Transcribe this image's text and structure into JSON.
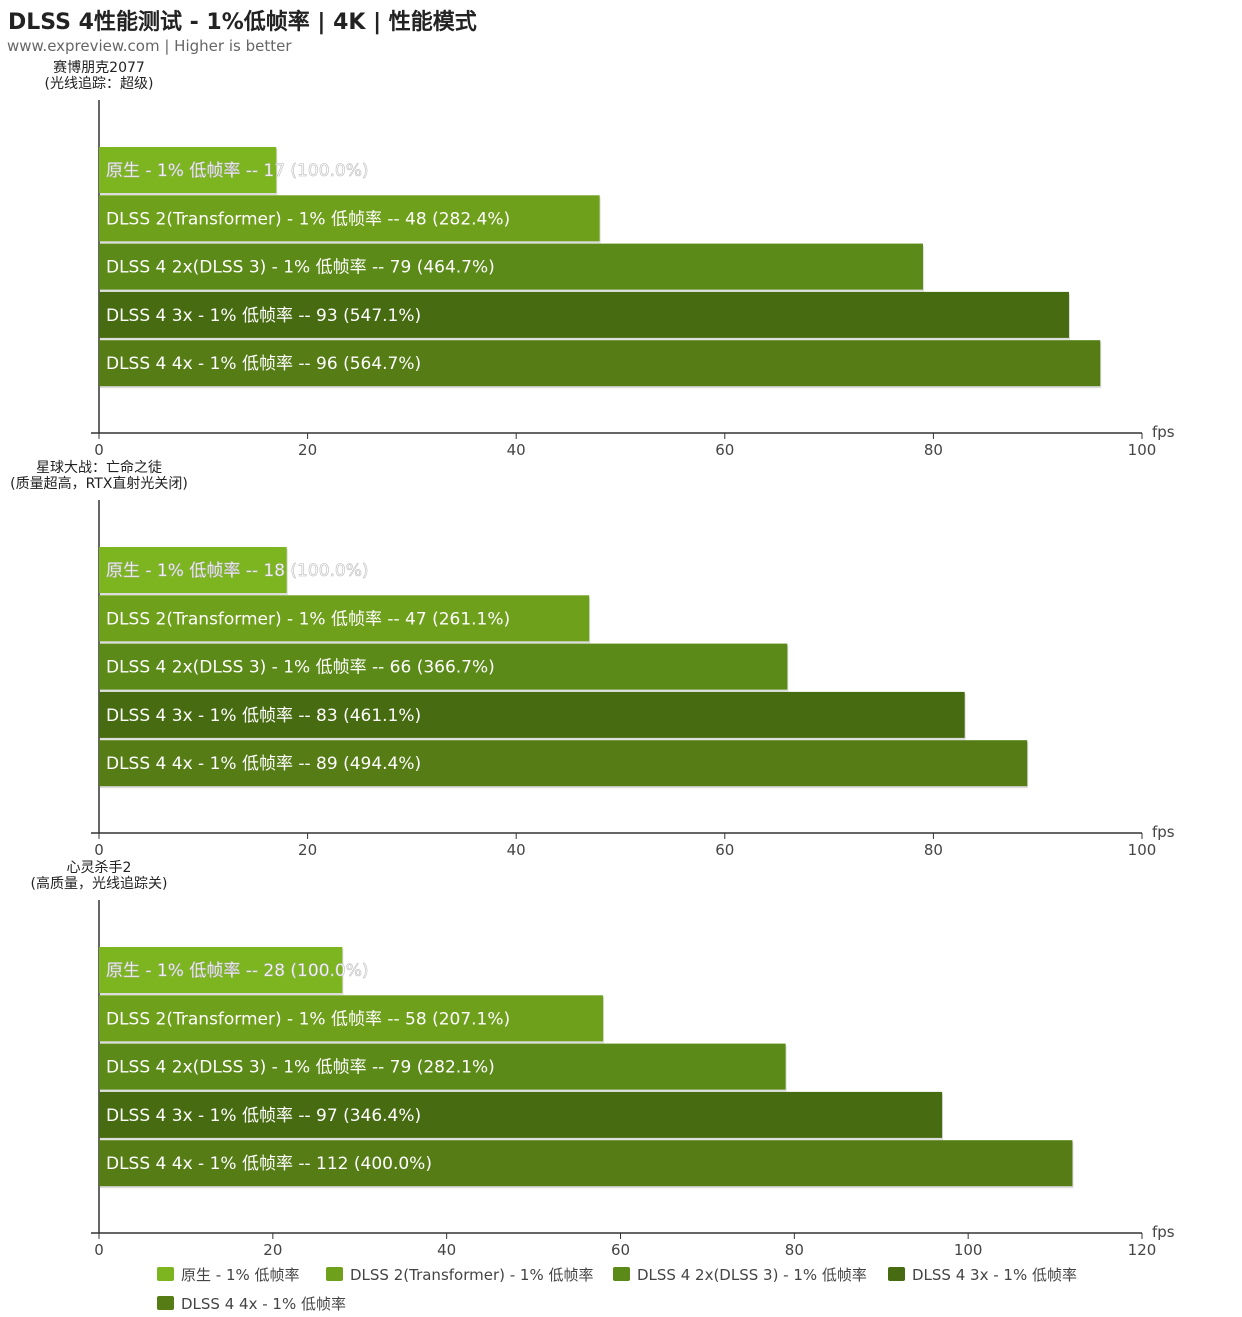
{
  "title": "DLSS 4性能测试 - 1%低帧率 | 4K | 性能模式",
  "subtitle": "www.expreview.com | Higher is better",
  "chart_data": [
    {
      "type": "bar",
      "orientation": "horizontal",
      "title": [
        "赛博朋克2077",
        "(光线追踪：超级)"
      ],
      "xlabel": "fps",
      "xlim": [
        0,
        100
      ],
      "xticks": [
        0,
        20,
        40,
        60,
        80,
        100
      ],
      "categories": [
        "原生 -  1% 低帧率",
        "DLSS 2(Transformer) - 1% 低帧率",
        "DLSS 4 2x(DLSS 3)  - 1% 低帧率",
        "DLSS 4 3x  - 1% 低帧率",
        "DLSS 4 4x  - 1% 低帧率"
      ],
      "values": [
        17,
        48,
        79,
        93,
        96
      ],
      "percent": [
        "100.0%",
        "282.4%",
        "464.7%",
        "547.1%",
        "564.7%"
      ]
    },
    {
      "type": "bar",
      "orientation": "horizontal",
      "title": [
        "星球大战：亡命之徒",
        "(质量超高，RTX直射光关闭)"
      ],
      "xlabel": "fps",
      "xlim": [
        0,
        100
      ],
      "xticks": [
        0,
        20,
        40,
        60,
        80,
        100
      ],
      "categories": [
        "原生 -  1% 低帧率",
        "DLSS 2(Transformer) - 1% 低帧率",
        "DLSS 4 2x(DLSS 3)  - 1% 低帧率",
        "DLSS 4 3x  - 1% 低帧率",
        "DLSS 4 4x  - 1% 低帧率"
      ],
      "values": [
        18,
        47,
        66,
        83,
        89
      ],
      "percent": [
        "100.0%",
        "261.1%",
        "366.7%",
        "461.1%",
        "494.4%"
      ]
    },
    {
      "type": "bar",
      "orientation": "horizontal",
      "title": [
        "心灵杀手2",
        "(高质量，光线追踪关)"
      ],
      "xlabel": "fps",
      "xlim": [
        0,
        120
      ],
      "xticks": [
        0,
        20,
        40,
        60,
        80,
        100,
        120
      ],
      "categories": [
        "原生 -  1% 低帧率",
        "DLSS 2(Transformer) - 1% 低帧率",
        "DLSS 4 2x(DLSS 3)  - 1% 低帧率",
        "DLSS 4 3x  - 1% 低帧率",
        "DLSS 4 4x  - 1% 低帧率"
      ],
      "values": [
        28,
        58,
        79,
        97,
        112
      ],
      "percent": [
        "100.0%",
        "207.1%",
        "282.1%",
        "346.4%",
        "400.0%"
      ]
    }
  ],
  "legend": {
    "placement": "bottom",
    "items": [
      "原生 -  1% 低帧率",
      "DLSS 2(Transformer) - 1% 低帧率",
      "DLSS 4 2x(DLSS 3)  - 1% 低帧率",
      "DLSS 4 3x  - 1% 低帧率",
      "DLSS 4 4x  - 1% 低帧率"
    ]
  },
  "colors": [
    "#7cb51f",
    "#6fa01c",
    "#5b8a18",
    "#466b11",
    "#557c15"
  ]
}
